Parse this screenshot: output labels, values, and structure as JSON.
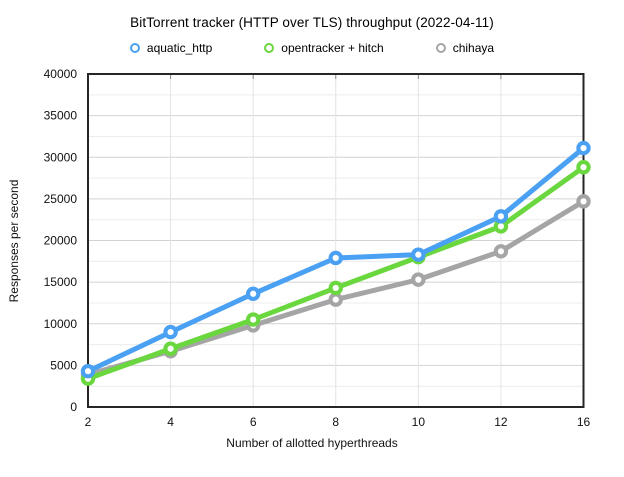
{
  "title": "BitTorrent tracker (HTTP over TLS) throughput (2022-04-11)",
  "legend": [
    {
      "label": "aquatic_http",
      "color": "#4AA0F2"
    },
    {
      "label": "opentracker + hitch",
      "color": "#6BD73F"
    },
    {
      "label": "chihaya",
      "color": "#A5A5A5"
    }
  ],
  "axes": {
    "xlabel": "Number of allotted hyperthreads",
    "ylabel": "Responses per second"
  },
  "chart_data": {
    "type": "line",
    "title": "BitTorrent tracker (HTTP over TLS) throughput (2022-04-11)",
    "xlabel": "Number of allotted hyperthreads",
    "ylabel": "Responses per second",
    "categories": [
      2,
      4,
      6,
      8,
      10,
      12,
      16
    ],
    "xticks": [
      "2",
      "4",
      "6",
      "8",
      "10",
      "12",
      "16"
    ],
    "yticks": [
      0,
      5000,
      10000,
      15000,
      20000,
      25000,
      30000,
      35000,
      40000
    ],
    "ylim": [
      0,
      40000
    ],
    "ytick_interval": 5000,
    "yminor_interval": 2500,
    "grid": true,
    "legend_position": "top",
    "marker": "ring",
    "series": [
      {
        "name": "aquatic_http",
        "color": "#4AA0F2",
        "values": [
          4300,
          9000,
          13600,
          17900,
          18300,
          22900,
          31100
        ]
      },
      {
        "name": "opentracker + hitch",
        "color": "#6BD73F",
        "values": [
          3400,
          7000,
          10500,
          14300,
          18000,
          21700,
          28800
        ]
      },
      {
        "name": "chihaya",
        "color": "#A5A5A5",
        "values": [
          3900,
          6700,
          9800,
          12900,
          15300,
          18700,
          24700
        ]
      }
    ],
    "colors": {
      "frame": "#262626",
      "grid_major": "#d2d2d2",
      "grid_minor": "#ececec",
      "grid_vertical": "#e4e4e4"
    }
  }
}
